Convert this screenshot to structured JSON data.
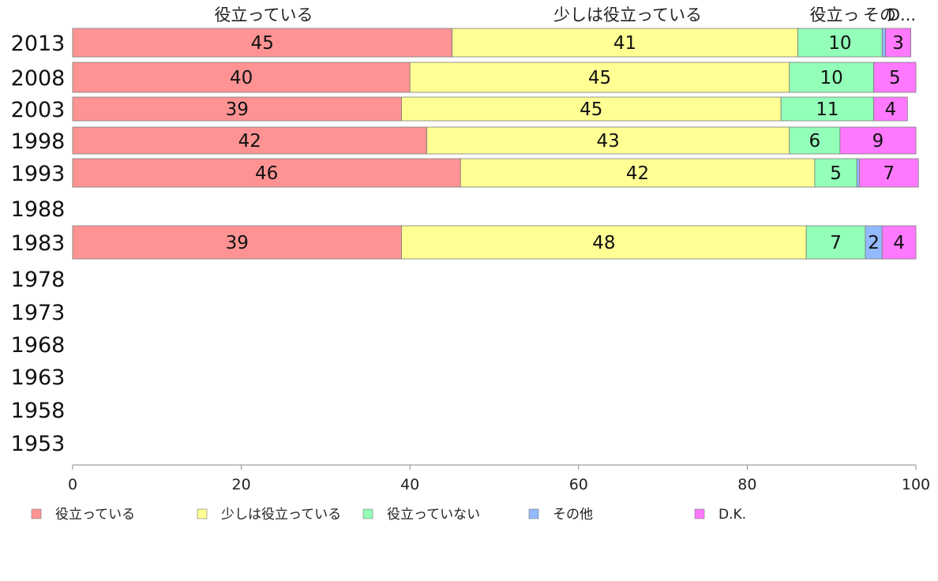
{
  "chart_data": {
    "type": "bar",
    "orientation": "horizontal",
    "stacked": true,
    "categories": [
      "2013",
      "2008",
      "2003",
      "1998",
      "1993",
      "1988",
      "1983",
      "1978",
      "1973",
      "1968",
      "1963",
      "1958",
      "1953"
    ],
    "series": [
      {
        "name": "役立っている",
        "color": "#ff9393",
        "values": [
          45,
          40,
          39,
          42,
          46,
          null,
          39,
          null,
          null,
          null,
          null,
          null,
          null
        ]
      },
      {
        "name": "少しは役立っている",
        "color": "#ffff93",
        "values": [
          41,
          45,
          45,
          43,
          42,
          null,
          48,
          null,
          null,
          null,
          null,
          null,
          null
        ]
      },
      {
        "name": "役立っていない",
        "color": "#93ffb9",
        "values": [
          10,
          10,
          11,
          6,
          5,
          null,
          7,
          null,
          null,
          null,
          null,
          null,
          null
        ]
      },
      {
        "name": "その他",
        "color": "#93b9ff",
        "values": [
          0.4,
          0,
          0,
          0,
          0.3,
          null,
          2,
          null,
          null,
          null,
          null,
          null,
          null
        ]
      },
      {
        "name": "D.K.",
        "color": "#ff79ff",
        "values": [
          3,
          5,
          4,
          9,
          7,
          null,
          4,
          null,
          null,
          null,
          null,
          null,
          null
        ]
      }
    ],
    "top_labels": [
      "役立っている",
      "少しは役立っている",
      "役立っ",
      "その",
      "D..."
    ],
    "xlim": [
      0,
      100
    ],
    "xticks": [
      0,
      20,
      40,
      60,
      80,
      100
    ],
    "grid": false,
    "legend_position": "bottom"
  }
}
